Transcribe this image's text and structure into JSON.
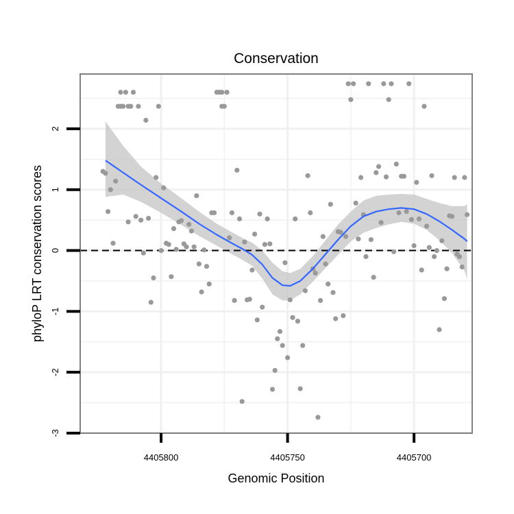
{
  "chart_data": {
    "type": "scatter",
    "title": "Conservation",
    "xlabel": "Genomic Position",
    "ylabel": "phyloP LRT conservation scores",
    "x_reversed": true,
    "xlim": [
      4405832,
      4405677
    ],
    "ylim": [
      -3,
      2.9
    ],
    "x_ticks": [
      4405800,
      4405750,
      4405700
    ],
    "x_tick_labels": [
      "4405800",
      "4405750",
      "4405700"
    ],
    "y_ticks": [
      -3,
      -2,
      -1,
      0,
      1,
      2
    ],
    "y_tick_labels": [
      "-3",
      "-2",
      "-1",
      "0",
      "1",
      "2"
    ],
    "grid": true,
    "reference_line": {
      "y": 0,
      "style": "dashed",
      "color": "#000000"
    },
    "colors": {
      "points": "#999999",
      "smooth": "#3366ff",
      "ribbon": "#c8c8c8",
      "panel_border": "#7f7f7f",
      "grid": "#f0f0f0"
    },
    "series": [
      {
        "name": "scores",
        "points": [
          [
            4405823,
            1.3
          ],
          [
            4405822,
            1.27
          ],
          [
            4405821,
            0.64
          ],
          [
            4405820,
            1.0
          ],
          [
            4405819,
            0.12
          ],
          [
            4405818,
            1.14
          ],
          [
            4405817,
            2.37
          ],
          [
            4405816,
            2.6
          ],
          [
            4405816,
            2.37
          ],
          [
            4405815,
            2.37
          ],
          [
            4405814,
            2.6
          ],
          [
            4405813,
            2.37
          ],
          [
            4405813,
            0.47
          ],
          [
            4405812,
            2.37
          ],
          [
            4405811,
            2.6
          ],
          [
            4405810,
            0.56
          ],
          [
            4405809,
            2.37
          ],
          [
            4405808,
            0.5
          ],
          [
            4405807,
            -0.04
          ],
          [
            4405806,
            2.14
          ],
          [
            4405805,
            0.53
          ],
          [
            4405804,
            -0.85
          ],
          [
            4405803,
            -0.45
          ],
          [
            4405802,
            1.2
          ],
          [
            4405801,
            2.37
          ],
          [
            4405800,
            0.0
          ],
          [
            4405799,
            1.03
          ],
          [
            4405798,
            0.12
          ],
          [
            4405797,
            0.1
          ],
          [
            4405796,
            -0.43
          ],
          [
            4405795,
            0.36
          ],
          [
            4405794,
            0.02
          ],
          [
            4405793,
            0.47
          ],
          [
            4405792,
            0.49
          ],
          [
            4405791,
            0.11
          ],
          [
            4405790,
            0.06
          ],
          [
            4405789,
            0.43
          ],
          [
            4405788,
            0.32
          ],
          [
            4405787,
            0.06
          ],
          [
            4405786,
            0.9
          ],
          [
            4405785,
            -0.22
          ],
          [
            4405784,
            -0.68
          ],
          [
            4405783,
            0.01
          ],
          [
            4405782,
            -0.26
          ],
          [
            4405781,
            -0.55
          ],
          [
            4405780,
            0.62
          ],
          [
            4405779,
            0.62
          ],
          [
            4405778,
            2.6
          ],
          [
            4405777,
            2.6
          ],
          [
            4405776,
            2.37
          ],
          [
            4405776,
            2.6
          ],
          [
            4405775,
            2.37
          ],
          [
            4405774,
            2.6
          ],
          [
            4405774,
            2.6
          ],
          [
            4405773,
            0.21
          ],
          [
            4405772,
            0.62
          ],
          [
            4405771,
            -0.82
          ],
          [
            4405770,
            1.32
          ],
          [
            4405769,
            0.52
          ],
          [
            4405768,
            -2.48
          ],
          [
            4405767,
            0.14
          ],
          [
            4405766,
            -0.81
          ],
          [
            4405765,
            -0.8
          ],
          [
            4405764,
            -0.32
          ],
          [
            4405763,
            0.27
          ],
          [
            4405762,
            -1.14
          ],
          [
            4405761,
            0.6
          ],
          [
            4405760,
            -0.93
          ],
          [
            4405759,
            0.1
          ],
          [
            4405758,
            0.52
          ],
          [
            4405757,
            0.11
          ],
          [
            4405756,
            -2.28
          ],
          [
            4405755,
            -1.97
          ],
          [
            4405754,
            -1.45
          ],
          [
            4405753,
            -1.33
          ],
          [
            4405752,
            -1.56
          ],
          [
            4405751,
            -0.2
          ],
          [
            4405750,
            -1.76
          ],
          [
            4405749,
            -0.81
          ],
          [
            4405748,
            -1.1
          ],
          [
            4405747,
            0.52
          ],
          [
            4405746,
            -1.16
          ],
          [
            4405745,
            -2.27
          ],
          [
            4405744,
            -1.56
          ],
          [
            4405743,
            -0.66
          ],
          [
            4405742,
            1.23
          ],
          [
            4405741,
            0.62
          ],
          [
            4405740,
            -0.3
          ],
          [
            4405739,
            -0.37
          ],
          [
            4405738,
            -2.74
          ],
          [
            4405737,
            -0.82
          ],
          [
            4405736,
            0.23
          ],
          [
            4405735,
            -0.22
          ],
          [
            4405734,
            -0.55
          ],
          [
            4405733,
            0.76
          ],
          [
            4405732,
            -0.69
          ],
          [
            4405731,
            -1.12
          ],
          [
            4405730,
            0.31
          ],
          [
            4405729,
            0.3
          ],
          [
            4405728,
            -1.07
          ],
          [
            4405727,
            0.23
          ],
          [
            4405726,
            2.74
          ],
          [
            4405725,
            2.48
          ],
          [
            4405724,
            2.74
          ],
          [
            4405723,
            0.78
          ],
          [
            4405722,
            0.19
          ],
          [
            4405721,
            1.2
          ],
          [
            4405720,
            0.59
          ],
          [
            4405719,
            -0.1
          ],
          [
            4405718,
            2.74
          ],
          [
            4405717,
            0.18
          ],
          [
            4405716,
            -0.44
          ],
          [
            4405715,
            1.28
          ],
          [
            4405714,
            1.38
          ],
          [
            4405713,
            0.46
          ],
          [
            4405712,
            2.74
          ],
          [
            4405711,
            1.21
          ],
          [
            4405710,
            2.48
          ],
          [
            4405709,
            2.74
          ],
          [
            4405708,
            -0.02
          ],
          [
            4405707,
            1.42
          ],
          [
            4405706,
            0.62
          ],
          [
            4405705,
            1.22
          ],
          [
            4405704,
            1.22
          ],
          [
            4405703,
            0.64
          ],
          [
            4405702,
            2.74
          ],
          [
            4405701,
            0.51
          ],
          [
            4405700,
            0.08
          ],
          [
            4405699,
            1.12
          ],
          [
            4405698,
            0.52
          ],
          [
            4405697,
            -0.32
          ],
          [
            4405696,
            2.37
          ],
          [
            4405695,
            0.4
          ],
          [
            4405694,
            0.05
          ],
          [
            4405693,
            1.23
          ],
          [
            4405692,
            -0.1
          ],
          [
            4405691,
            0.0
          ],
          [
            4405690,
            -1.3
          ],
          [
            4405689,
            0.16
          ],
          [
            4405688,
            -0.79
          ],
          [
            4405687,
            -0.3
          ],
          [
            4405686,
            0.57
          ],
          [
            4405685,
            0.56
          ],
          [
            4405684,
            1.2
          ],
          [
            4405683,
            -0.06
          ],
          [
            4405682,
            -0.1
          ],
          [
            4405681,
            -0.27
          ],
          [
            4405680,
            1.2
          ],
          [
            4405679,
            0.59
          ]
        ]
      }
    ],
    "smooth": {
      "method": "loess",
      "x": [
        4405822,
        4405815,
        4405808,
        4405800,
        4405792,
        4405785,
        4405778,
        4405772,
        4405768,
        4405764,
        4405760,
        4405756,
        4405752,
        4405749,
        4405745,
        4405740,
        4405735,
        4405730,
        4405725,
        4405720,
        4405715,
        4405710,
        4405705,
        4405700,
        4405695,
        4405690,
        4405685,
        4405680,
        4405679
      ],
      "y": [
        1.48,
        1.28,
        1.08,
        0.86,
        0.64,
        0.44,
        0.26,
        0.12,
        0.03,
        -0.07,
        -0.23,
        -0.45,
        -0.57,
        -0.58,
        -0.5,
        -0.3,
        -0.06,
        0.18,
        0.4,
        0.56,
        0.64,
        0.68,
        0.7,
        0.68,
        0.6,
        0.48,
        0.34,
        0.19,
        0.15
      ],
      "ci_upper": [
        2.12,
        1.72,
        1.38,
        1.1,
        0.86,
        0.64,
        0.44,
        0.3,
        0.21,
        0.13,
        0.0,
        -0.2,
        -0.34,
        -0.37,
        -0.3,
        -0.09,
        0.17,
        0.43,
        0.64,
        0.82,
        0.9,
        0.92,
        0.93,
        0.92,
        0.85,
        0.78,
        0.73,
        0.73,
        0.76
      ],
      "ci_lower": [
        0.88,
        0.92,
        0.8,
        0.62,
        0.42,
        0.24,
        0.08,
        -0.06,
        -0.15,
        -0.25,
        -0.46,
        -0.72,
        -0.82,
        -0.82,
        -0.72,
        -0.51,
        -0.29,
        -0.07,
        0.15,
        0.29,
        0.37,
        0.43,
        0.47,
        0.44,
        0.34,
        0.17,
        -0.04,
        -0.34,
        -0.47
      ]
    }
  }
}
